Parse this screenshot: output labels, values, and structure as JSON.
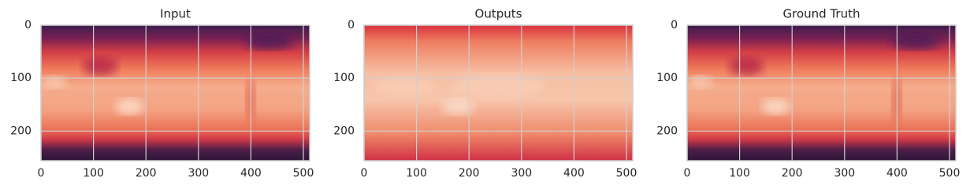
{
  "chart_data": [
    {
      "type": "image",
      "title": "Input",
      "xlim": [
        0,
        512
      ],
      "ylim": [
        256,
        0
      ],
      "xticks": [
        0,
        100,
        200,
        300,
        400,
        500
      ],
      "yticks": [
        0,
        100,
        200
      ],
      "grid": true
    },
    {
      "type": "image",
      "title": "Outputs",
      "xlim": [
        0,
        512
      ],
      "ylim": [
        256,
        0
      ],
      "xticks": [
        0,
        100,
        200,
        300,
        400,
        500
      ],
      "yticks": [
        0,
        100,
        200
      ],
      "grid": true
    },
    {
      "type": "image",
      "title": "Ground Truth",
      "xlim": [
        0,
        512
      ],
      "ylim": [
        256,
        0
      ],
      "xticks": [
        0,
        100,
        200,
        300,
        400,
        500
      ],
      "yticks": [
        0,
        100,
        200
      ],
      "grid": true
    }
  ]
}
